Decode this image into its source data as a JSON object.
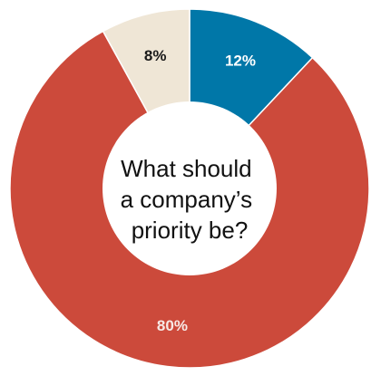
{
  "chart_data": {
    "type": "pie",
    "donut": true,
    "center_title_lines": [
      "What should",
      "a company’s",
      "priority be?"
    ],
    "slices": [
      {
        "label": "12%",
        "value": 12,
        "color": "#0077a8",
        "label_color": "#ffffff"
      },
      {
        "label": "80%",
        "value": 80,
        "color": "#cc4a3b",
        "label_color": "#f7e9e6"
      },
      {
        "label": "8%",
        "value": 8,
        "color": "#efe6d6",
        "label_color": "#1a1a1a"
      }
    ]
  }
}
